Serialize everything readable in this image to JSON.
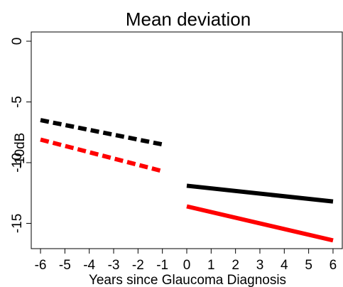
{
  "chart_data": {
    "type": "line",
    "title": "Mean deviation",
    "x_label": "Years since Glaucoma Diagnosis",
    "y_label": "-10dB",
    "x": [
      -6,
      -1,
      0,
      6
    ],
    "series": [
      {
        "color": "#000000",
        "dash": true,
        "values": [
          -6.5,
          -8.5,
          null,
          null
        ]
      },
      {
        "color": "#ff0000",
        "dash": true,
        "values": [
          -8.1,
          -10.7,
          null,
          null
        ]
      },
      {
        "color": "#000000",
        "dash": false,
        "values": [
          null,
          null,
          -11.9,
          -13.2
        ]
      },
      {
        "color": "#ff0000",
        "dash": false,
        "values": [
          null,
          null,
          -13.6,
          -16.4
        ]
      }
    ],
    "xlim": [
      -6.38,
      6.38
    ],
    "xticks": [
      -6,
      -5,
      -4,
      -3,
      -2,
      -1,
      0,
      1,
      2,
      3,
      4,
      5,
      6
    ],
    "ylim": [
      -17.08,
      0.76
    ],
    "yticks": [
      0,
      -5,
      -10,
      -15
    ]
  }
}
